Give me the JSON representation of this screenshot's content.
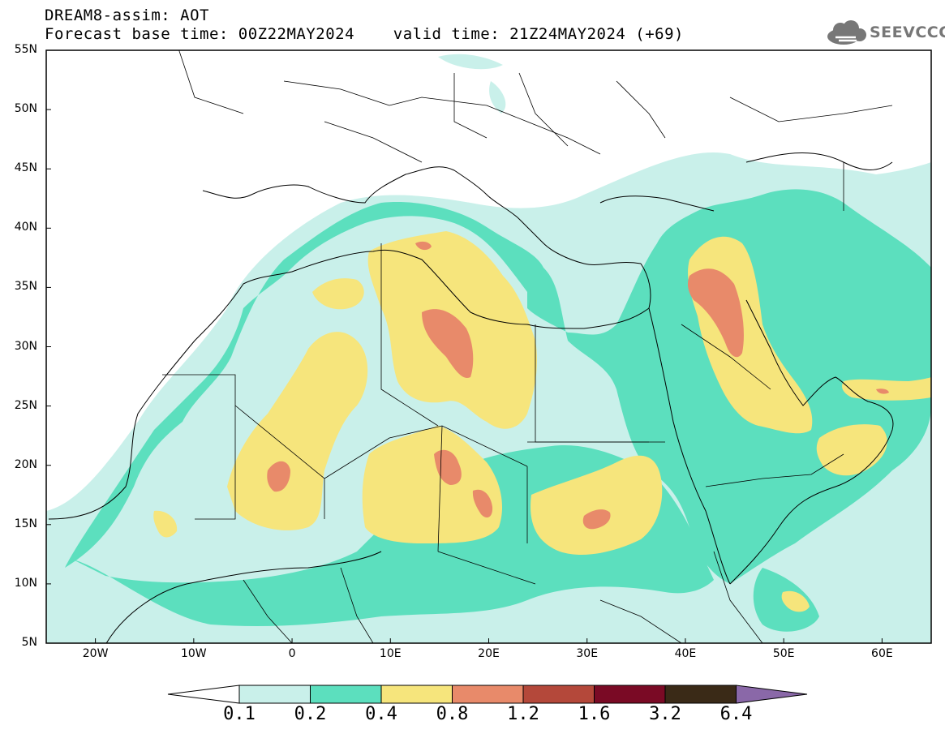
{
  "header": {
    "title": "DREAM8-assim: AOT",
    "subtitle": "Forecast base time: 00Z22MAY2024    valid time: 21Z24MAY2024 (+69)",
    "logo_text": "SEEVCCC"
  },
  "axes": {
    "lat_labels": [
      "55N",
      "50N",
      "45N",
      "40N",
      "35N",
      "30N",
      "25N",
      "20N",
      "15N",
      "10N",
      "5N"
    ],
    "lon_labels": [
      "20W",
      "10W",
      "0",
      "10E",
      "20E",
      "30E",
      "40E",
      "50E",
      "60E"
    ],
    "lat_range": [
      5,
      55
    ],
    "lon_range": [
      -25,
      65
    ]
  },
  "legend": {
    "colors": [
      "#c9f0ea",
      "#5cdfbe",
      "#f6e57c",
      "#e88a6a",
      "#b4483a",
      "#7a0a25",
      "#3a2a17",
      "#8a68a8"
    ],
    "under_color": "#ffffff",
    "labels": [
      "0.1",
      "0.2",
      "0.4",
      "0.8",
      "1.2",
      "1.6",
      "3.2",
      "6.4"
    ]
  }
}
